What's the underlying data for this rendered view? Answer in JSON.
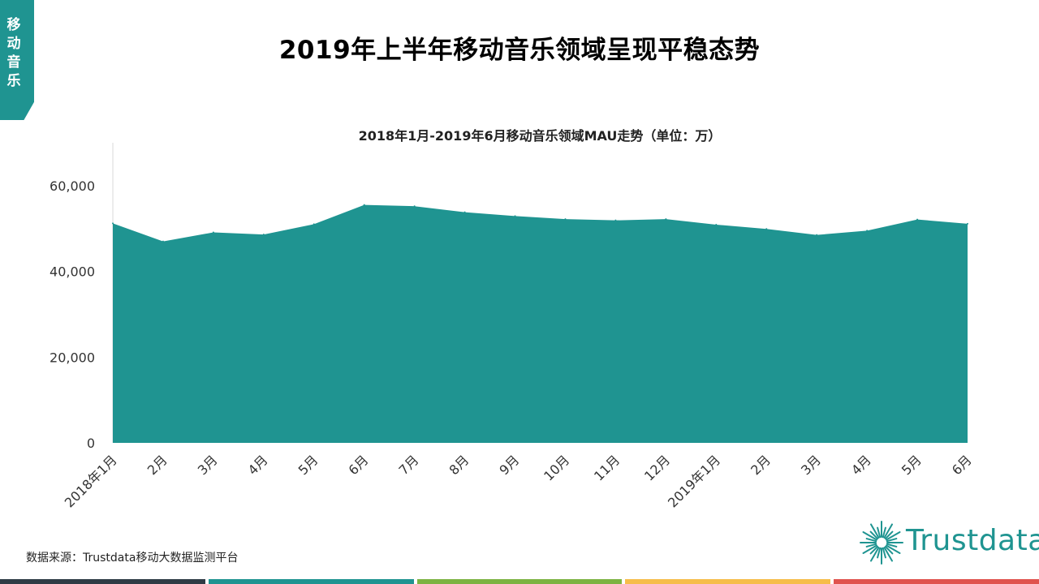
{
  "side_tab": {
    "label": "移动音乐"
  },
  "page": {
    "title": "2019年上半年移动音乐领域呈现平稳态势"
  },
  "footer": {
    "source": "数据来源：Trustdata移动大数据监测平台"
  },
  "logo": {
    "text": "Trustdata",
    "icon": "sunburst-logo-icon"
  },
  "colors": {
    "accent": "#1f9491",
    "area_fill": "#1f9491",
    "bottom_bar": [
      "#2f3b45",
      "#1f9491",
      "#7cb342",
      "#f6bd4a",
      "#e0534e"
    ]
  },
  "chart_data": {
    "type": "area",
    "title": "2018年1月-2019年6月移动音乐领域MAU走势（单位：万）",
    "categories": [
      "2018年1月",
      "2月",
      "3月",
      "4月",
      "5月",
      "6月",
      "7月",
      "8月",
      "9月",
      "10月",
      "11月",
      "12月",
      "2019年1月",
      "2月",
      "3月",
      "4月",
      "5月",
      "6月"
    ],
    "values": [
      51200,
      47000,
      49100,
      48600,
      51000,
      55500,
      55200,
      53800,
      52900,
      52200,
      51900,
      52200,
      50900,
      49900,
      48500,
      49500,
      52100,
      51100
    ],
    "ylim": [
      0,
      70000
    ],
    "yticks": [
      0,
      20000,
      40000,
      60000
    ],
    "ytick_labels": [
      "0",
      "20,000",
      "40,000",
      "60,000"
    ],
    "xlabel": "",
    "ylabel": "",
    "grid": false,
    "legend": "none"
  }
}
